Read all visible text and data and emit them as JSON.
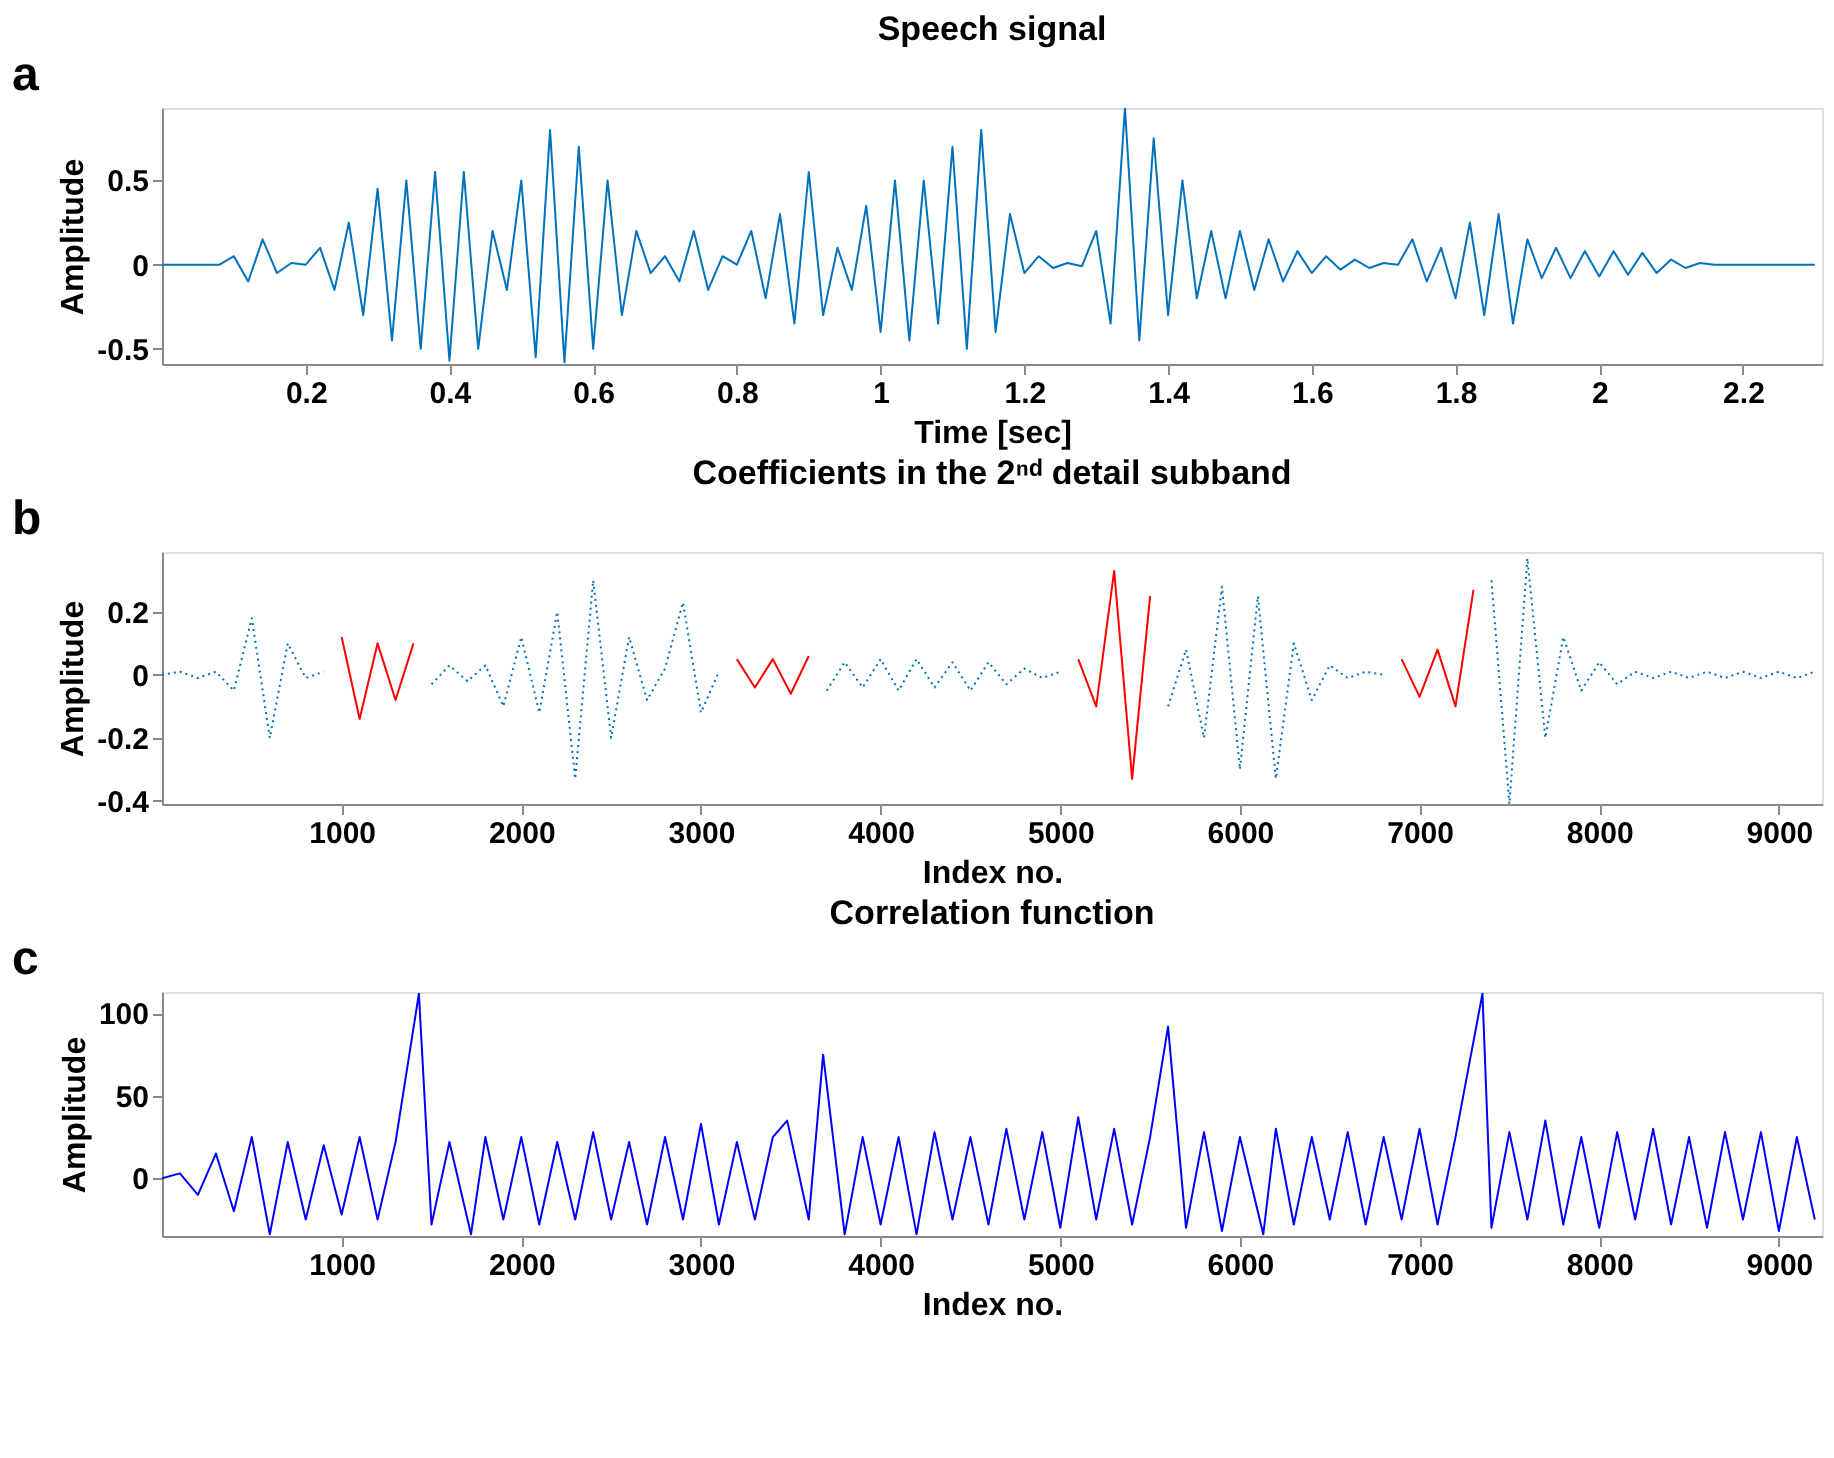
{
  "chart_data": [
    {
      "type": "line",
      "title": "Speech signal",
      "xlabel": "Time [sec]",
      "ylabel": "Amplitude",
      "annotations": [
        "a"
      ],
      "x": [
        0,
        0.02,
        0.04,
        0.06,
        0.08,
        0.1,
        0.12,
        0.14,
        0.16,
        0.18,
        0.2,
        0.22,
        0.24,
        0.26,
        0.28,
        0.3,
        0.32,
        0.34,
        0.36,
        0.38,
        0.4,
        0.42,
        0.44,
        0.46,
        0.48,
        0.5,
        0.52,
        0.54,
        0.56,
        0.58,
        0.6,
        0.62,
        0.64,
        0.66,
        0.68,
        0.7,
        0.72,
        0.74,
        0.76,
        0.78,
        0.8,
        0.82,
        0.84,
        0.86,
        0.88,
        0.9,
        0.92,
        0.94,
        0.96,
        0.98,
        1.0,
        1.02,
        1.04,
        1.06,
        1.08,
        1.1,
        1.12,
        1.14,
        1.16,
        1.18,
        1.2,
        1.22,
        1.24,
        1.26,
        1.28,
        1.3,
        1.32,
        1.34,
        1.36,
        1.38,
        1.4,
        1.42,
        1.44,
        1.46,
        1.48,
        1.5,
        1.52,
        1.54,
        1.56,
        1.58,
        1.6,
        1.62,
        1.64,
        1.66,
        1.68,
        1.7,
        1.72,
        1.74,
        1.76,
        1.78,
        1.8,
        1.82,
        1.84,
        1.86,
        1.88,
        1.9,
        1.92,
        1.94,
        1.96,
        1.98,
        2.0,
        2.02,
        2.04,
        2.06,
        2.08,
        2.1,
        2.12,
        2.14,
        2.16,
        2.18,
        2.2,
        2.22,
        2.24,
        2.26,
        2.28,
        2.3
      ],
      "series": [
        {
          "color": "#0072bd",
          "line_style": "solid",
          "values": [
            0,
            0,
            0,
            0,
            0,
            0.05,
            -0.1,
            0.15,
            -0.05,
            0.01,
            0,
            0.1,
            -0.15,
            0.25,
            -0.3,
            0.45,
            -0.45,
            0.5,
            -0.5,
            0.55,
            -0.57,
            0.55,
            -0.5,
            0.2,
            -0.15,
            0.5,
            -0.55,
            0.8,
            -0.58,
            0.7,
            -0.5,
            0.5,
            -0.3,
            0.2,
            -0.05,
            0.05,
            -0.1,
            0.2,
            -0.15,
            0.05,
            0,
            0.2,
            -0.2,
            0.3,
            -0.35,
            0.55,
            -0.3,
            0.1,
            -0.15,
            0.35,
            -0.4,
            0.5,
            -0.45,
            0.5,
            -0.35,
            0.7,
            -0.5,
            0.8,
            -0.4,
            0.3,
            -0.05,
            0.05,
            -0.02,
            0.01,
            -0.01,
            0.2,
            -0.35,
            0.93,
            -0.45,
            0.75,
            -0.3,
            0.5,
            -0.2,
            0.2,
            -0.2,
            0.2,
            -0.15,
            0.15,
            -0.1,
            0.08,
            -0.05,
            0.05,
            -0.03,
            0.03,
            -0.02,
            0.01,
            0,
            0.15,
            -0.1,
            0.1,
            -0.2,
            0.25,
            -0.3,
            0.3,
            -0.35,
            0.15,
            -0.08,
            0.1,
            -0.08,
            0.08,
            -0.07,
            0.08,
            -0.06,
            0.07,
            -0.05,
            0.03,
            -0.02,
            0.01,
            0,
            0,
            0,
            0,
            0,
            0,
            0,
            0
          ]
        }
      ],
      "xlim": [
        0,
        2.31
      ],
      "xticks": [
        0.2,
        0.4,
        0.6,
        0.8,
        1,
        1.2,
        1.4,
        1.6,
        1.8,
        2,
        2.2
      ],
      "ylim": [
        -0.59,
        0.93
      ],
      "yticks": [
        -0.5,
        0,
        0.5
      ],
      "grid": false
    },
    {
      "type": "line",
      "title": "Coefficients in the 2ⁿᵈ detail subband",
      "xlabel": "Index no.",
      "ylabel": "Amplitude",
      "annotations": [
        "b"
      ],
      "x": [
        0,
        100,
        200,
        300,
        400,
        500,
        600,
        700,
        800,
        900,
        1000,
        1100,
        1200,
        1300,
        1400,
        1500,
        1600,
        1700,
        1800,
        1900,
        2000,
        2100,
        2200,
        2300,
        2400,
        2500,
        2600,
        2700,
        2800,
        2900,
        3000,
        3100,
        3200,
        3300,
        3400,
        3500,
        3600,
        3700,
        3800,
        3900,
        4000,
        4100,
        4200,
        4300,
        4400,
        4500,
        4600,
        4700,
        4800,
        4900,
        5000,
        5100,
        5200,
        5300,
        5400,
        5500,
        5600,
        5700,
        5800,
        5900,
        6000,
        6100,
        6200,
        6300,
        6400,
        6500,
        6600,
        6700,
        6800,
        6900,
        7000,
        7100,
        7200,
        7300,
        7400,
        7500,
        7600,
        7700,
        7800,
        7900,
        8000,
        8100,
        8200,
        8300,
        8400,
        8500,
        8600,
        8700,
        8800,
        8900,
        9000,
        9100,
        9200
      ],
      "series": [
        {
          "color": "#0072bd",
          "line_style": "dotted",
          "values": [
            0,
            0.01,
            -0.01,
            0.01,
            -0.05,
            0.18,
            -0.2,
            0.1,
            -0.01,
            0.01,
            null,
            null,
            null,
            null,
            null,
            -0.03,
            0.03,
            -0.02,
            0.03,
            -0.1,
            0.12,
            -0.12,
            0.2,
            -0.33,
            0.3,
            -0.2,
            0.12,
            -0.08,
            0.02,
            0.23,
            -0.12,
            0.01,
            null,
            null,
            null,
            null,
            null,
            -0.05,
            0.04,
            -0.04,
            0.05,
            -0.05,
            0.05,
            -0.04,
            0.04,
            -0.05,
            0.04,
            -0.03,
            0.02,
            -0.01,
            0.01,
            null,
            null,
            null,
            null,
            null,
            -0.1,
            0.08,
            -0.2,
            0.28,
            -0.3,
            0.25,
            -0.33,
            0.1,
            -0.08,
            0.03,
            -0.01,
            0.01,
            0,
            null,
            null,
            null,
            null,
            null,
            0.3,
            -0.41,
            0.37,
            -0.2,
            0.12,
            -0.05,
            0.04,
            -0.03,
            0.01,
            -0.01,
            0.01,
            -0.01,
            0.01,
            -0.01,
            0.01,
            -0.01,
            0.01,
            -0.01,
            0.01
          ]
        },
        {
          "color": "#ff0000",
          "line_style": "solid",
          "values": [
            null,
            null,
            null,
            null,
            null,
            null,
            null,
            null,
            null,
            null,
            0.12,
            -0.14,
            0.1,
            -0.08,
            0.1,
            null,
            null,
            null,
            null,
            null,
            null,
            null,
            null,
            null,
            null,
            null,
            null,
            null,
            null,
            null,
            null,
            null,
            0.05,
            -0.04,
            0.05,
            -0.06,
            0.06,
            null,
            null,
            null,
            null,
            null,
            null,
            null,
            null,
            null,
            null,
            null,
            null,
            null,
            null,
            0.05,
            -0.1,
            0.33,
            -0.33,
            0.25,
            null,
            null,
            null,
            null,
            null,
            null,
            null,
            null,
            null,
            null,
            null,
            null,
            null,
            0.05,
            -0.07,
            0.08,
            -0.1,
            0.27,
            null,
            null,
            null,
            null,
            null,
            null,
            null,
            null,
            null,
            null,
            null,
            null,
            null,
            null,
            null,
            null,
            null,
            null,
            null
          ]
        }
      ],
      "xlim": [
        0,
        9240
      ],
      "xticks": [
        1000,
        2000,
        3000,
        4000,
        5000,
        6000,
        7000,
        8000,
        9000
      ],
      "ylim": [
        -0.41,
        0.39
      ],
      "yticks": [
        -0.4,
        -0.2,
        0,
        0.2
      ],
      "grid": false
    },
    {
      "type": "line",
      "title": "Correlation function",
      "xlabel": "Index no.",
      "ylabel": "Amplitude",
      "annotations": [
        "c"
      ],
      "x": [
        0,
        100,
        200,
        300,
        400,
        500,
        600,
        700,
        800,
        900,
        1000,
        1100,
        1200,
        1300,
        1430,
        1500,
        1600,
        1720,
        1800,
        1900,
        2000,
        2100,
        2200,
        2300,
        2400,
        2500,
        2600,
        2700,
        2800,
        2900,
        3000,
        3100,
        3200,
        3300,
        3400,
        3480,
        3600,
        3680,
        3800,
        3900,
        4000,
        4100,
        4200,
        4300,
        4400,
        4500,
        4600,
        4700,
        4800,
        4900,
        5000,
        5100,
        5200,
        5300,
        5400,
        5500,
        5600,
        5700,
        5800,
        5900,
        6000,
        6130,
        6200,
        6300,
        6400,
        6500,
        6600,
        6700,
        6800,
        6900,
        7000,
        7100,
        7200,
        7350,
        7400,
        7500,
        7600,
        7700,
        7800,
        7900,
        8000,
        8100,
        8200,
        8300,
        8400,
        8500,
        8600,
        8700,
        8800,
        8900,
        9000,
        9100,
        9200
      ],
      "series": [
        {
          "color": "#0000ff",
          "line_style": "solid",
          "values": [
            0,
            3,
            -10,
            15,
            -20,
            25,
            -34,
            22,
            -25,
            20,
            -22,
            25,
            -25,
            22,
            112,
            -28,
            22,
            -34,
            25,
            -25,
            25,
            -28,
            22,
            -25,
            28,
            -25,
            22,
            -28,
            25,
            -25,
            33,
            -28,
            22,
            -25,
            25,
            35,
            -25,
            75,
            -34,
            25,
            -28,
            25,
            -34,
            28,
            -25,
            25,
            -28,
            30,
            -25,
            28,
            -30,
            37,
            -25,
            30,
            -28,
            25,
            92,
            -30,
            28,
            -32,
            25,
            -34,
            30,
            -28,
            25,
            -25,
            28,
            -28,
            25,
            -25,
            30,
            -28,
            25,
            112,
            -30,
            28,
            -25,
            35,
            -28,
            25,
            -30,
            28,
            -25,
            30,
            -28,
            25,
            -30,
            28,
            -25,
            28,
            -32,
            25,
            -25
          ]
        }
      ],
      "xlim": [
        0,
        9240
      ],
      "xticks": [
        1000,
        2000,
        3000,
        4000,
        5000,
        6000,
        7000,
        8000,
        9000
      ],
      "ylim": [
        -35,
        113
      ],
      "yticks": [
        0,
        50,
        100
      ],
      "grid": false
    }
  ]
}
